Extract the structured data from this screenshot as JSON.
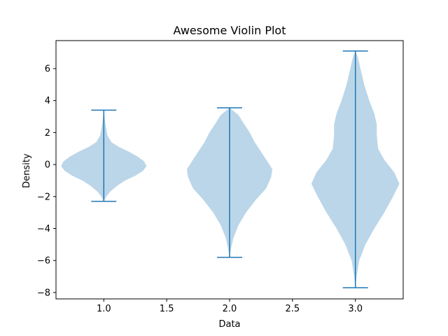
{
  "chart_data": {
    "type": "violin",
    "title": "Awesome Violin Plot",
    "xlabel": "Data",
    "ylabel": "Density",
    "xlim": [
      0.62,
      3.38
    ],
    "ylim": [
      -8.4,
      7.75
    ],
    "xticks": [
      1.0,
      1.5,
      2.0,
      2.5,
      3.0
    ],
    "xtick_labels": [
      "1.0",
      "1.5",
      "2.0",
      "2.5",
      "3.0"
    ],
    "yticks": [
      -8,
      -6,
      -4,
      -2,
      0,
      2,
      4,
      6
    ],
    "ytick_labels": [
      "−8",
      "−6",
      "−4",
      "−2",
      "0",
      "2",
      "4",
      "6"
    ],
    "grid": false,
    "colors": {
      "body": "#1f77b4",
      "body_opacity": 0.3,
      "lines": "#1f77b4"
    },
    "violins": [
      {
        "position": 1.0,
        "min": -2.3,
        "max": 3.4,
        "profile": [
          [
            -2.3,
            0.0
          ],
          [
            -2.0,
            0.02
          ],
          [
            -1.7,
            0.05
          ],
          [
            -1.3,
            0.11
          ],
          [
            -1.0,
            0.17
          ],
          [
            -0.7,
            0.25
          ],
          [
            -0.4,
            0.31
          ],
          [
            -0.1,
            0.34
          ],
          [
            0.2,
            0.32
          ],
          [
            0.5,
            0.27
          ],
          [
            0.8,
            0.2
          ],
          [
            1.1,
            0.12
          ],
          [
            1.4,
            0.06
          ],
          [
            1.8,
            0.03
          ],
          [
            2.2,
            0.02
          ],
          [
            2.7,
            0.01
          ],
          [
            3.4,
            0.0
          ]
        ]
      },
      {
        "position": 2.0,
        "min": -5.8,
        "max": 3.55,
        "profile": [
          [
            -5.8,
            0.0
          ],
          [
            -5.3,
            0.01
          ],
          [
            -4.6,
            0.03
          ],
          [
            -3.8,
            0.07
          ],
          [
            -3.0,
            0.13
          ],
          [
            -2.2,
            0.21
          ],
          [
            -1.5,
            0.29
          ],
          [
            -0.8,
            0.33
          ],
          [
            -0.3,
            0.34
          ],
          [
            0.2,
            0.3
          ],
          [
            0.8,
            0.25
          ],
          [
            1.4,
            0.2
          ],
          [
            2.0,
            0.16
          ],
          [
            2.6,
            0.11
          ],
          [
            3.1,
            0.07
          ],
          [
            3.55,
            0.0
          ]
        ]
      },
      {
        "position": 3.0,
        "min": -7.7,
        "max": 7.1,
        "profile": [
          [
            -7.7,
            0.0
          ],
          [
            -7.0,
            0.01
          ],
          [
            -6.0,
            0.03
          ],
          [
            -5.0,
            0.08
          ],
          [
            -4.0,
            0.15
          ],
          [
            -3.0,
            0.23
          ],
          [
            -2.0,
            0.3
          ],
          [
            -1.2,
            0.35
          ],
          [
            -0.5,
            0.31
          ],
          [
            0.3,
            0.23
          ],
          [
            1.0,
            0.18
          ],
          [
            1.8,
            0.17
          ],
          [
            2.5,
            0.17
          ],
          [
            3.2,
            0.15
          ],
          [
            4.0,
            0.11
          ],
          [
            5.0,
            0.07
          ],
          [
            6.0,
            0.04
          ],
          [
            6.7,
            0.02
          ],
          [
            7.1,
            0.0
          ]
        ]
      }
    ]
  }
}
